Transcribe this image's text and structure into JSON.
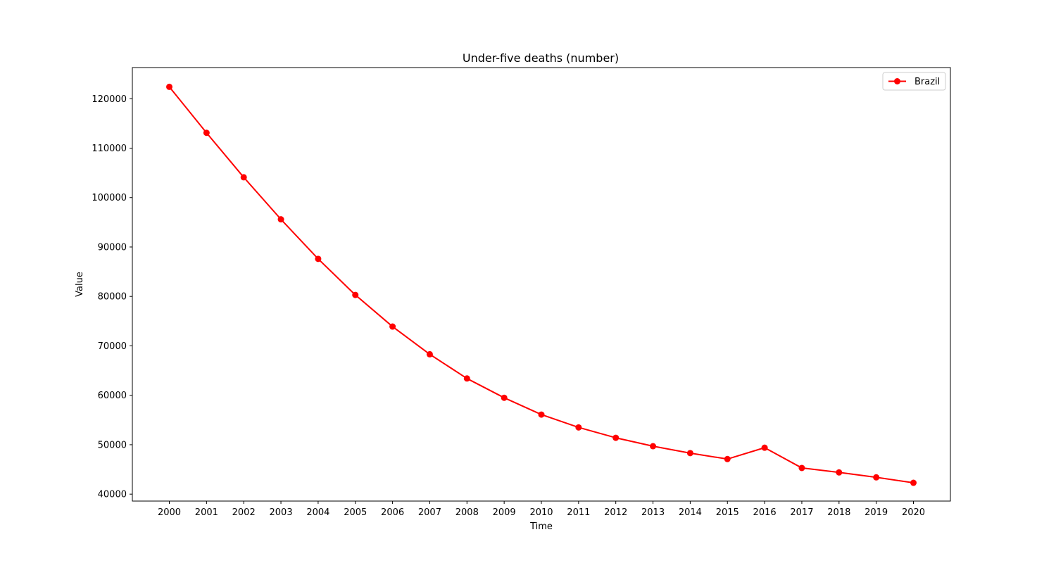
{
  "chart_data": {
    "type": "line",
    "title": "Under-five deaths (number)",
    "xlabel": "Time",
    "ylabel": "Value",
    "categories": [
      "2000",
      "2001",
      "2002",
      "2003",
      "2004",
      "2005",
      "2006",
      "2007",
      "2008",
      "2009",
      "2010",
      "2011",
      "2012",
      "2013",
      "2014",
      "2015",
      "2016",
      "2017",
      "2018",
      "2019",
      "2020"
    ],
    "yticks": [
      40000,
      50000,
      60000,
      70000,
      80000,
      90000,
      100000,
      110000,
      120000
    ],
    "ylim": [
      38600,
      126300
    ],
    "grid": false,
    "legend": "top-right",
    "series": [
      {
        "name": "Brazil",
        "color": "#ff0000",
        "marker": "circle",
        "values": [
          122400,
          113100,
          104100,
          95600,
          87600,
          80300,
          73900,
          68300,
          63400,
          59500,
          56100,
          53500,
          51400,
          49700,
          48300,
          47100,
          49400,
          45300,
          44400,
          43400,
          42300
        ]
      }
    ]
  }
}
